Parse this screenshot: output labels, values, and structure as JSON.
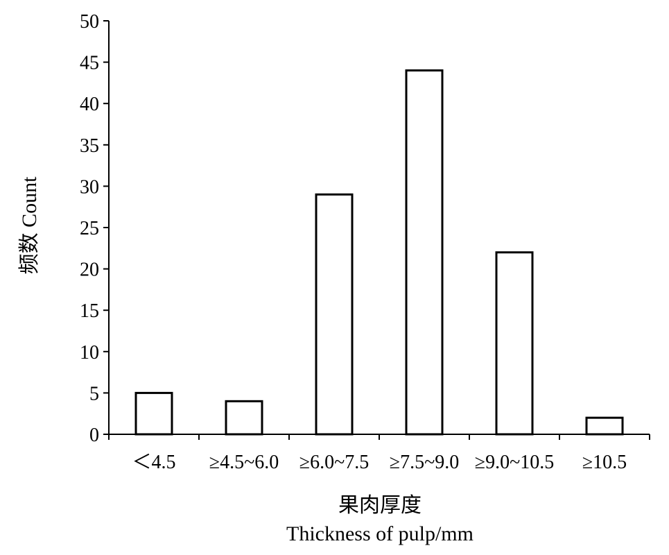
{
  "chart_data": {
    "type": "bar",
    "categories": [
      "＜4.5",
      "≥4.5~6.0",
      "≥6.0~7.5",
      "≥7.5~9.0",
      "≥9.0~10.5",
      "≥10.5"
    ],
    "values": [
      5,
      4,
      29,
      44,
      22,
      2
    ],
    "title": "",
    "xlabel": "果肉厚度",
    "xlabel_en": "Thickness of pulp/mm",
    "ylabel": "频数 Count",
    "ylim": [
      0,
      50
    ],
    "yticks": [
      0,
      5,
      10,
      15,
      20,
      25,
      30,
      35,
      40,
      45,
      50
    ],
    "grid": false,
    "colors": {
      "bar_fill": "#ffffff",
      "bar_stroke": "#000000",
      "axis": "#000000"
    }
  }
}
